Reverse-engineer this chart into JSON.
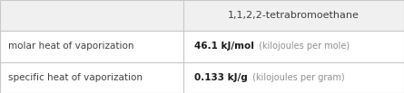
{
  "title": "1,1,2,2-tetrabromoethane",
  "rows": [
    {
      "label": "molar heat of vaporization",
      "value_bold": "46.1 kJ/mol",
      "value_light": " (kilojoules per mole)"
    },
    {
      "label": "specific heat of vaporization",
      "value_bold": "0.133 kJ/g",
      "value_light": " (kilojoules per gram)"
    }
  ],
  "col_split": 0.455,
  "bg_color": "#ffffff",
  "border_color": "#c8c8c8",
  "label_color": "#404040",
  "title_color": "#404040",
  "value_bold_color": "#1a1a1a",
  "value_light_color": "#909090",
  "header_bg": "#f0f0f0",
  "row_bg": "#ffffff",
  "figwidth": 4.45,
  "figheight": 1.03,
  "dpi": 100
}
